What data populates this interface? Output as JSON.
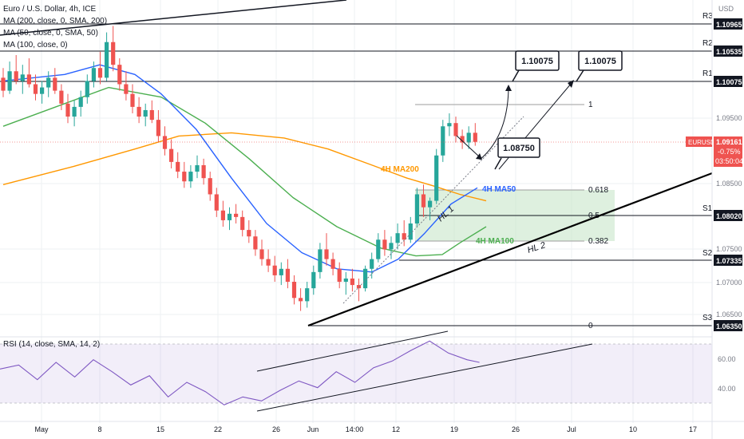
{
  "header": {
    "symbol_title": "Euro / U.S. Dollar, 4h, ICE",
    "indicators": [
      "MA (200, close, 0, SMA, 200)",
      "MA (50, close, 0, SMA, 50)",
      "MA (100, close, 0)"
    ],
    "rsi_label": "RSI (14, close, SMA, 14, 2)"
  },
  "axis": {
    "currency": "USD",
    "price_ticks": [
      "1.09500",
      "1.08500",
      "1.07500",
      "1.07000",
      "1.06500"
    ],
    "rsi_ticks": [
      "60.00",
      "40.00"
    ],
    "time_ticks": [
      "May",
      "8",
      "15",
      "22",
      "26",
      "Jun",
      "14:00",
      "12",
      "19",
      "26",
      "Jul",
      "10",
      "17"
    ]
  },
  "levels": [
    {
      "name": "R3",
      "label": "1.10965",
      "value": 1.10965
    },
    {
      "name": "R2",
      "label": "1.10535",
      "value": 1.10535
    },
    {
      "name": "R1",
      "label": "1.10075",
      "value": 1.10075
    },
    {
      "name": "S1",
      "label": "1.08020",
      "value": 1.0802
    },
    {
      "name": "S2",
      "label": "1.07335",
      "value": 1.07335
    },
    {
      "name": "S3",
      "label": "1.06350",
      "value": 1.0635
    }
  ],
  "last_price": {
    "symbol": "EURUSD",
    "price": "1.09161",
    "change": "-0.75%",
    "countdown": "03:50:04"
  },
  "fib": [
    {
      "label": "1",
      "value": 1.0975
    },
    {
      "label": "0.618",
      "value": 1.0843
    },
    {
      "label": "0.5",
      "value": 1.0802
    },
    {
      "label": "0.382",
      "value": 1.0762
    },
    {
      "label": "0",
      "value": 1.0635
    }
  ],
  "annotations": {
    "target_1": "1.10075",
    "target_2": "1.10075",
    "pivot": "1.08750",
    "hl1": "HL 1",
    "hl2": "HL  2",
    "ma200": "4H MA200",
    "ma50": "4H MA50",
    "ma100": "4H MA100"
  },
  "colors": {
    "up": "#26a69a",
    "down": "#ef5350",
    "ma50": "#2962ff",
    "ma100": "#4caf50",
    "ma200": "#ff9800",
    "rsi": "#7e57c2",
    "rsi_ma": "#fdd835",
    "fib_zone": "#c8e6c9"
  },
  "chart_data": {
    "type": "candlestick",
    "symbol": "EURUSD",
    "timeframe": "4h",
    "price_range": [
      1.0615,
      1.1135
    ],
    "rsi_range": [
      20,
      80
    ],
    "candles": [
      [
        1.1015,
        1.103,
        1.0985,
        1.0995
      ],
      [
        1.0995,
        1.104,
        1.099,
        1.1025
      ],
      [
        1.1025,
        1.105,
        1.1005,
        1.101
      ],
      [
        1.101,
        1.1035,
        1.099,
        1.102
      ],
      [
        1.102,
        1.1045,
        1.1,
        1.1005
      ],
      [
        1.1005,
        1.102,
        1.098,
        1.099
      ],
      [
        1.099,
        1.101,
        1.0975,
        1.1
      ],
      [
        1.1,
        1.1025,
        1.0985,
        1.1015
      ],
      [
        1.1015,
        1.103,
        1.099,
        1.0995
      ],
      [
        1.0995,
        1.1005,
        1.0965,
        1.0975
      ],
      [
        1.0975,
        1.099,
        1.0945,
        1.0955
      ],
      [
        1.0955,
        1.098,
        1.094,
        1.097
      ],
      [
        1.097,
        1.0995,
        1.0955,
        1.0985
      ],
      [
        1.0985,
        1.102,
        1.0975,
        1.101
      ],
      [
        1.101,
        1.104,
        1.1,
        1.103
      ],
      [
        1.103,
        1.1055,
        1.1005,
        1.1015
      ],
      [
        1.1015,
        1.1085,
        1.101,
        1.107
      ],
      [
        1.107,
        1.1095,
        1.1025,
        1.1035
      ],
      [
        1.1035,
        1.1045,
        1.0995,
        1.1005
      ],
      [
        1.1005,
        1.1025,
        1.098,
        1.099
      ],
      [
        1.099,
        1.1005,
        1.096,
        1.097
      ],
      [
        1.097,
        1.0985,
        1.0945,
        1.0955
      ],
      [
        1.0955,
        1.0975,
        1.094,
        1.0965
      ],
      [
        1.0965,
        1.098,
        1.0945,
        1.095
      ],
      [
        1.095,
        1.0965,
        1.0915,
        1.0925
      ],
      [
        1.0925,
        1.094,
        1.0895,
        1.0905
      ],
      [
        1.0905,
        1.092,
        1.0875,
        1.0885
      ],
      [
        1.0885,
        1.09,
        1.086,
        1.087
      ],
      [
        1.087,
        1.0885,
        1.0845,
        1.0855
      ],
      [
        1.0855,
        1.088,
        1.0845,
        1.087
      ],
      [
        1.087,
        1.0895,
        1.086,
        1.088
      ],
      [
        1.088,
        1.089,
        1.085,
        1.086
      ],
      [
        1.086,
        1.087,
        1.0825,
        1.0835
      ],
      [
        1.0835,
        1.0845,
        1.08,
        1.081
      ],
      [
        1.081,
        1.0825,
        1.0785,
        1.0795
      ],
      [
        1.0795,
        1.0815,
        1.078,
        1.0805
      ],
      [
        1.0805,
        1.082,
        1.079,
        1.08
      ],
      [
        1.08,
        1.081,
        1.077,
        1.078
      ],
      [
        1.078,
        1.0795,
        1.076,
        1.077
      ],
      [
        1.077,
        1.078,
        1.074,
        1.075
      ],
      [
        1.075,
        1.0765,
        1.0725,
        1.0735
      ],
      [
        1.0735,
        1.075,
        1.0715,
        1.0725
      ],
      [
        1.0725,
        1.074,
        1.07,
        1.071
      ],
      [
        1.071,
        1.073,
        1.0695,
        1.072
      ],
      [
        1.072,
        1.0735,
        1.069,
        1.07
      ],
      [
        1.07,
        1.071,
        1.0665,
        1.0675
      ],
      [
        1.0675,
        1.069,
        1.0655,
        1.067
      ],
      [
        1.067,
        1.07,
        1.066,
        1.069
      ],
      [
        1.069,
        1.0725,
        1.068,
        1.0715
      ],
      [
        1.0715,
        1.076,
        1.0705,
        1.075
      ],
      [
        1.075,
        1.0775,
        1.0725,
        1.0735
      ],
      [
        1.0735,
        1.0745,
        1.071,
        1.072
      ],
      [
        1.072,
        1.073,
        1.069,
        1.07
      ],
      [
        1.07,
        1.0715,
        1.068,
        1.0705
      ],
      [
        1.0705,
        1.072,
        1.0685,
        1.0695
      ],
      [
        1.0695,
        1.0705,
        1.067,
        1.069
      ],
      [
        1.069,
        1.0725,
        1.0685,
        1.072
      ],
      [
        1.072,
        1.0745,
        1.0705,
        1.0735
      ],
      [
        1.0735,
        1.0775,
        1.073,
        1.0765
      ],
      [
        1.0765,
        1.078,
        1.074,
        1.075
      ],
      [
        1.075,
        1.077,
        1.0735,
        1.076
      ],
      [
        1.076,
        1.079,
        1.075,
        1.0775
      ],
      [
        1.0775,
        1.0795,
        1.0755,
        1.0765
      ],
      [
        1.0765,
        1.08,
        1.076,
        1.079
      ],
      [
        1.079,
        1.0845,
        1.0785,
        1.0835
      ],
      [
        1.0835,
        1.085,
        1.08,
        1.0815
      ],
      [
        1.0815,
        1.083,
        1.0795,
        1.0825
      ],
      [
        1.0825,
        1.0905,
        1.082,
        1.0895
      ],
      [
        1.0895,
        1.095,
        1.0885,
        1.094
      ],
      [
        1.094,
        1.096,
        1.0925,
        1.0945
      ],
      [
        1.0945,
        1.0955,
        1.0915,
        1.0925
      ],
      [
        1.0925,
        1.0935,
        1.0905,
        1.0915
      ],
      [
        1.0915,
        1.094,
        1.0905,
        1.093
      ],
      [
        1.093,
        1.0945,
        1.091,
        1.0916
      ]
    ],
    "ma200": [
      [
        0,
        1.085
      ],
      [
        16,
        1.0878
      ],
      [
        30,
        1.0905
      ],
      [
        40,
        1.0925
      ],
      [
        52,
        1.093
      ],
      [
        64,
        1.0922
      ],
      [
        74,
        1.0905
      ],
      [
        84,
        1.088
      ],
      [
        92,
        1.086
      ],
      [
        98,
        1.0848
      ],
      [
        104,
        1.0835
      ],
      [
        110,
        1.0825
      ]
    ],
    "ma50": [
      [
        0,
        1.101
      ],
      [
        14,
        1.102
      ],
      [
        22,
        1.1035
      ],
      [
        30,
        1.102
      ],
      [
        36,
        1.099
      ],
      [
        44,
        1.0935
      ],
      [
        52,
        1.086
      ],
      [
        60,
        1.079
      ],
      [
        68,
        1.0745
      ],
      [
        76,
        1.072
      ],
      [
        84,
        1.0715
      ],
      [
        90,
        1.0735
      ],
      [
        96,
        1.0775
      ],
      [
        102,
        1.082
      ],
      [
        108,
        1.0845
      ]
    ],
    "ma100": [
      [
        0,
        1.094
      ],
      [
        14,
        1.0975
      ],
      [
        24,
        1.1
      ],
      [
        36,
        1.0985
      ],
      [
        46,
        1.0945
      ],
      [
        56,
        1.089
      ],
      [
        66,
        1.083
      ],
      [
        76,
        1.0785
      ],
      [
        86,
        1.0752
      ],
      [
        94,
        1.074
      ],
      [
        100,
        1.0742
      ],
      [
        104,
        1.076
      ],
      [
        110,
        1.0785
      ]
    ],
    "rsi": [
      [
        0,
        57
      ],
      [
        6,
        60
      ],
      [
        12,
        49
      ],
      [
        18,
        62
      ],
      [
        24,
        51
      ],
      [
        30,
        64
      ],
      [
        36,
        55
      ],
      [
        42,
        45
      ],
      [
        48,
        52
      ],
      [
        54,
        36
      ],
      [
        60,
        47
      ],
      [
        66,
        40
      ],
      [
        72,
        30
      ],
      [
        78,
        36
      ],
      [
        84,
        33
      ],
      [
        90,
        41
      ],
      [
        96,
        48
      ],
      [
        102,
        43
      ],
      [
        108,
        55
      ],
      [
        114,
        47
      ],
      [
        120,
        58
      ],
      [
        126,
        63
      ],
      [
        132,
        71
      ],
      [
        138,
        78
      ],
      [
        144,
        69
      ],
      [
        150,
        64
      ],
      [
        154,
        62
      ]
    ]
  }
}
